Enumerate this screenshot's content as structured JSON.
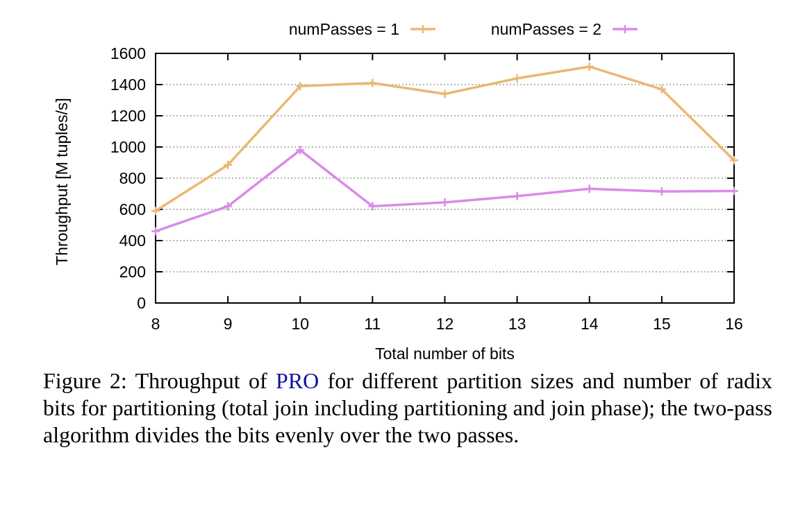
{
  "chart_data": {
    "type": "line",
    "x": [
      8,
      9,
      10,
      11,
      12,
      13,
      14,
      15,
      16
    ],
    "series": [
      {
        "name": "numPasses = 1",
        "color": "#ebb772",
        "values": [
          590,
          885,
          1390,
          1410,
          1340,
          1440,
          1515,
          1370,
          915
        ]
      },
      {
        "name": "numPasses = 2",
        "color": "#da8ae8",
        "values": [
          460,
          620,
          980,
          620,
          645,
          685,
          732,
          715,
          718
        ]
      }
    ],
    "xlabel": "Total number of bits",
    "ylabel": "Throughput [M tuples/s]",
    "xlim": [
      8,
      16
    ],
    "ylim": [
      0,
      1600
    ],
    "yticks": [
      0,
      200,
      400,
      600,
      800,
      1000,
      1200,
      1400,
      1600
    ],
    "xticks": [
      8,
      9,
      10,
      11,
      12,
      13,
      14,
      15,
      16
    ],
    "grid": "horizontal dotted",
    "legend": "top-center"
  },
  "caption": {
    "prefix": "Figure 2: Throughput of ",
    "link": "PRO",
    "suffix": " for different partition sizes and number of radix bits for partitioning (total join including partitioning and join phase); the two-pass algorithm divides the bits evenly over the two passes."
  }
}
